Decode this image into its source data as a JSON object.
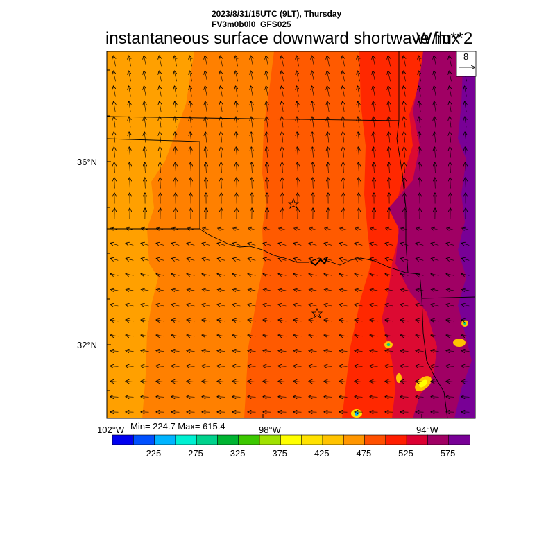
{
  "header": {
    "datetime": "2023/8/31/15UTC (9LT), Thursday",
    "model": "FV3m0b0l0_GFS025",
    "title": "instantaneous surface downward shortwave flux",
    "units": "W/m**2"
  },
  "vector_legend": {
    "value": "8"
  },
  "stats": {
    "text": "Min= 224.7 Max= 615.4"
  },
  "axes": {
    "lat_labels": [
      "36°N",
      "32°N"
    ],
    "lon_labels": [
      "102°W",
      "98°W",
      "94°W"
    ]
  },
  "colorbar": {
    "labels": [
      "225",
      "275",
      "325",
      "375",
      "425",
      "475",
      "525",
      "575"
    ],
    "colors": [
      "#0000f0",
      "#0050ff",
      "#00b4ff",
      "#00f0d2",
      "#00d28c",
      "#00b432",
      "#3cc800",
      "#a0e100",
      "#ffff00",
      "#ffe100",
      "#ffc300",
      "#ff9600",
      "#ff5000",
      "#ff1e00",
      "#dc0032",
      "#a00064",
      "#780096"
    ]
  },
  "colors": {
    "orange_light": "#ffa000",
    "orange": "#ff8000",
    "orange_red": "#ff5a00",
    "red": "#ff2800",
    "crimson": "#dc0a32",
    "purple": "#a00064",
    "violet": "#780096"
  }
}
